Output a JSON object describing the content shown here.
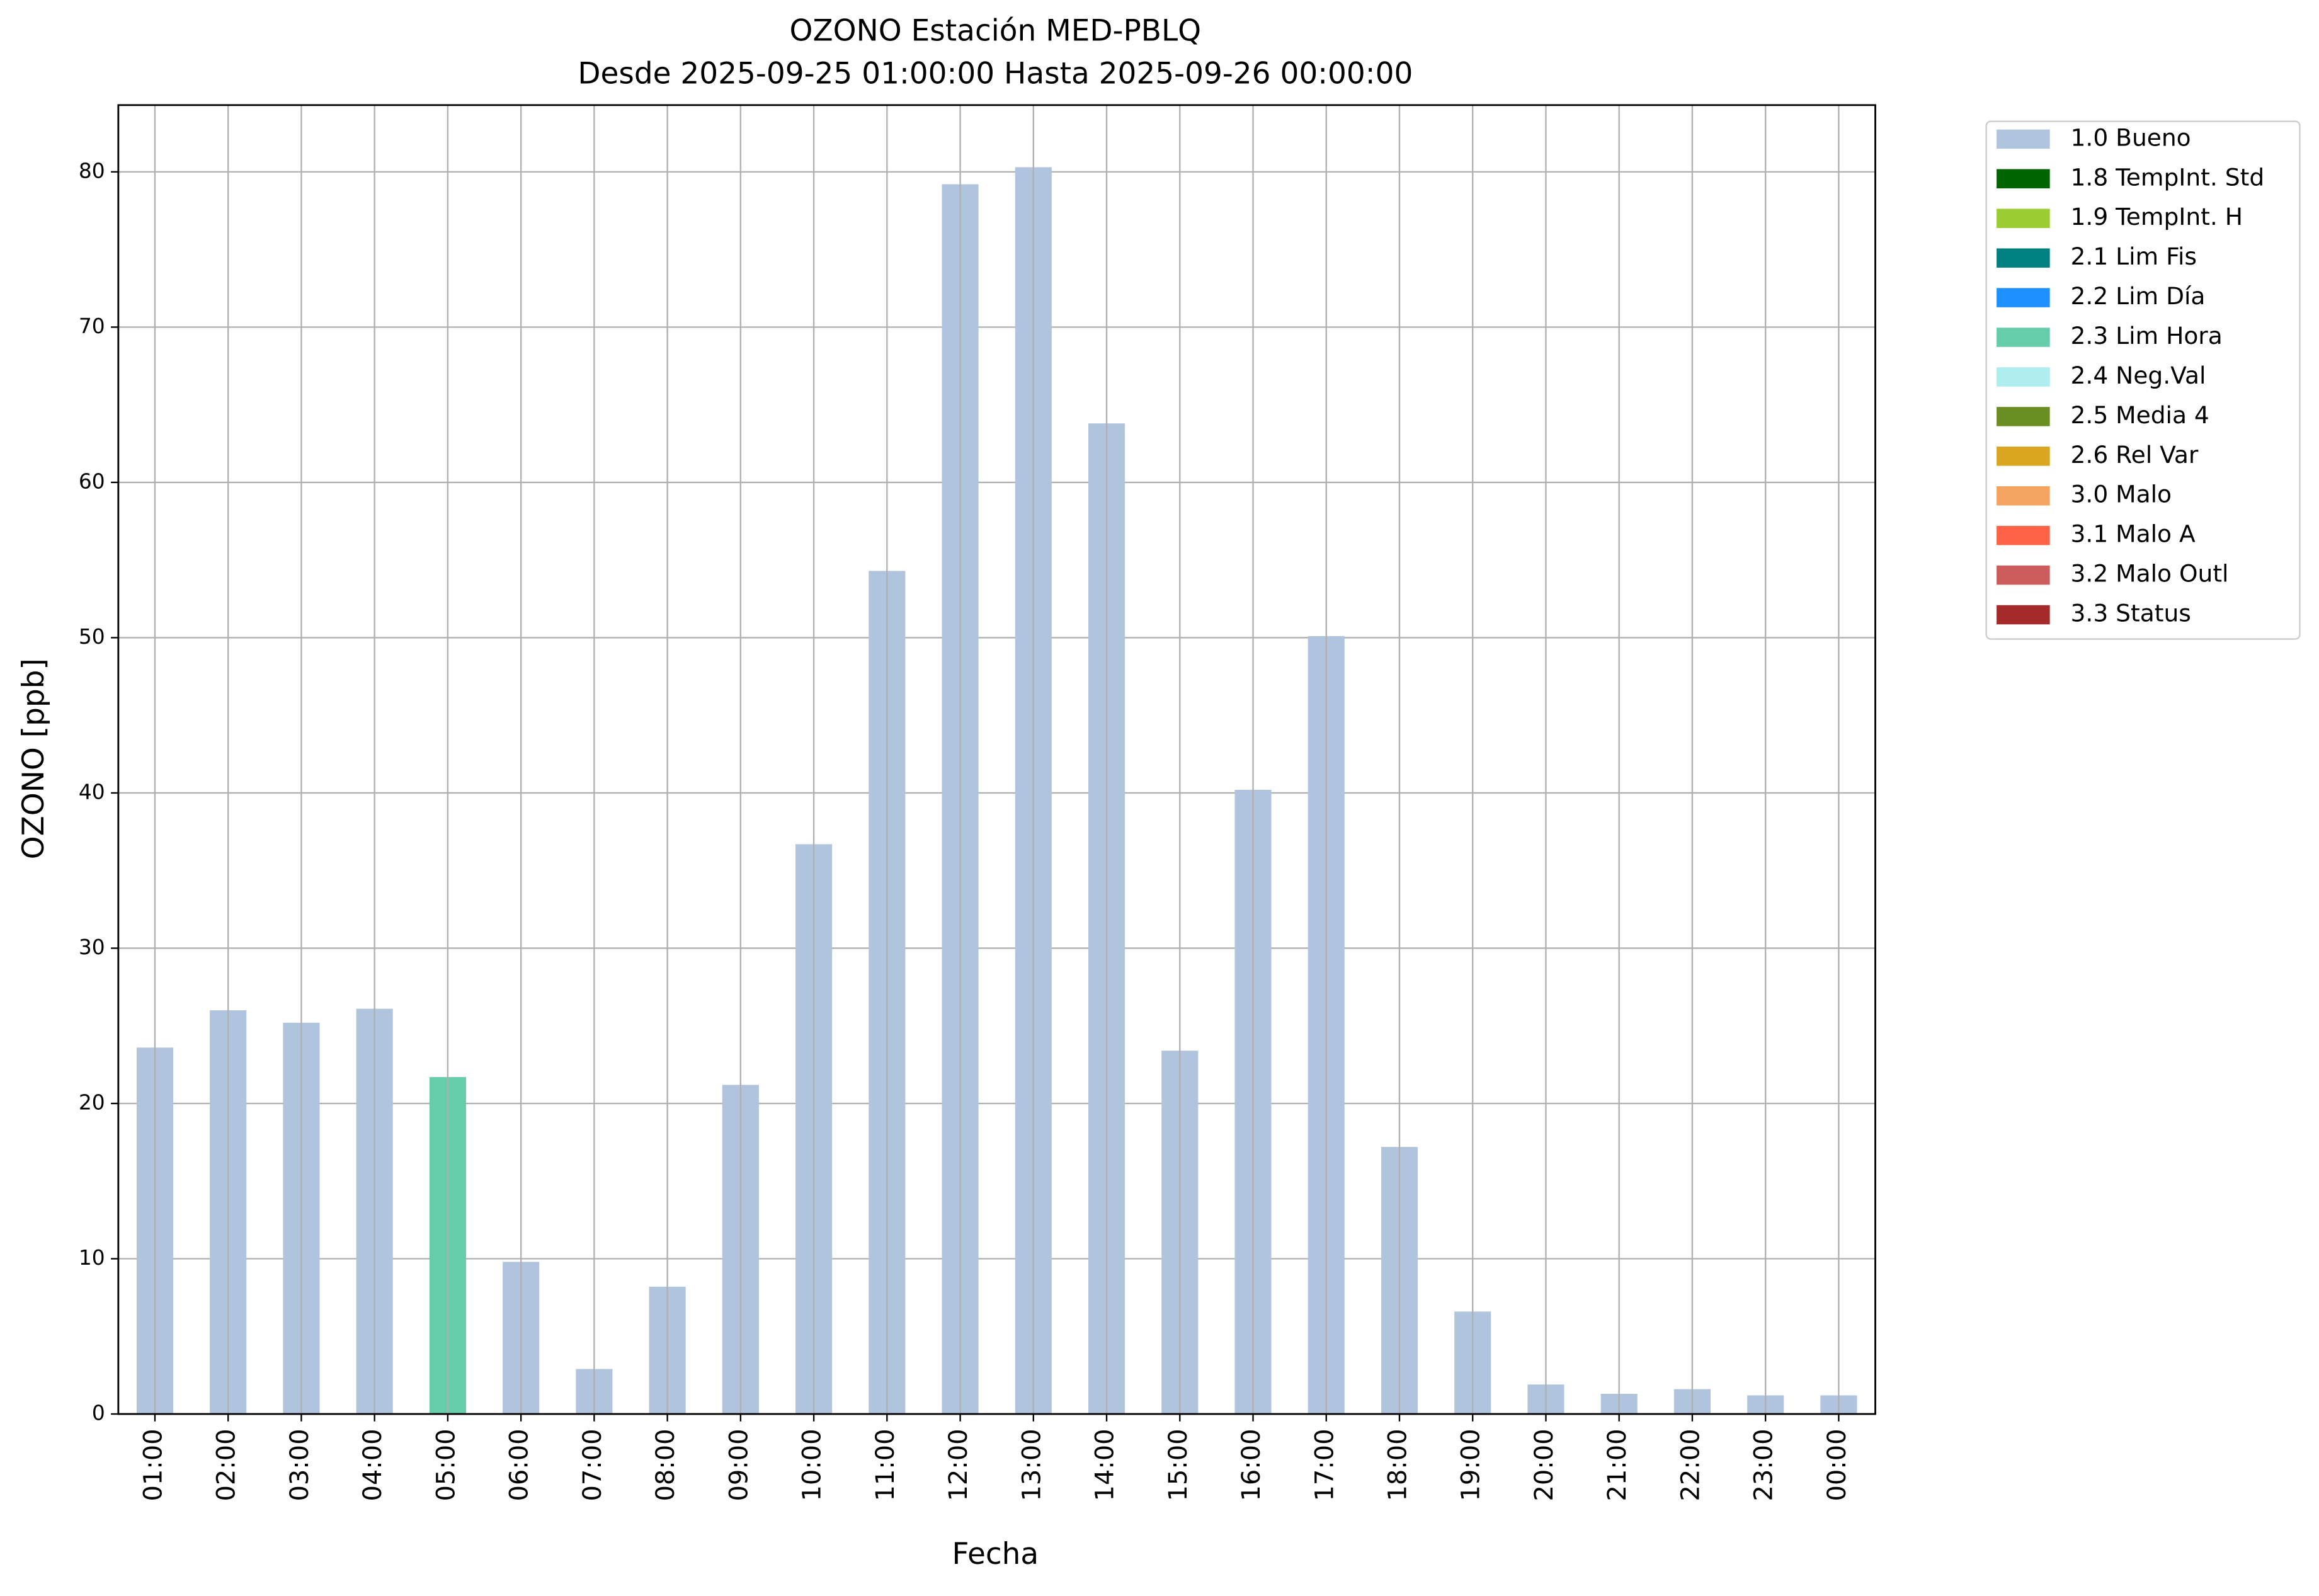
{
  "chart_data": {
    "type": "bar",
    "title": "OZONO Estación MED-PBLQ",
    "subtitle": "Desde 2025-09-25 01:00:00 Hasta 2025-09-26 00:00:00",
    "x_label": "Fecha",
    "y_label": "OZONO [ppb]",
    "categories": [
      "01:00",
      "02:00",
      "03:00",
      "04:00",
      "05:00",
      "06:00",
      "07:00",
      "08:00",
      "09:00",
      "10:00",
      "11:00",
      "12:00",
      "13:00",
      "14:00",
      "15:00",
      "16:00",
      "17:00",
      "18:00",
      "19:00",
      "20:00",
      "21:00",
      "22:00",
      "23:00",
      "00:00"
    ],
    "series": [
      {
        "name": "1.0 Bueno",
        "color": "#b0c4de",
        "values": [
          23.6,
          26.0,
          25.2,
          26.1,
          null,
          9.8,
          2.9,
          8.2,
          21.2,
          36.7,
          54.3,
          79.2,
          80.3,
          63.8,
          23.4,
          40.2,
          50.1,
          17.2,
          6.6,
          1.9,
          1.3,
          1.6,
          1.2,
          1.2
        ]
      },
      {
        "name": "1.8 TempInt. Std",
        "color": "#006400",
        "values": [
          null,
          null,
          null,
          null,
          null,
          null,
          null,
          null,
          null,
          null,
          null,
          null,
          null,
          null,
          null,
          null,
          null,
          null,
          null,
          null,
          null,
          null,
          null,
          null
        ]
      },
      {
        "name": "1.9 TempInt. H",
        "color": "#9acd32",
        "values": [
          null,
          null,
          null,
          null,
          null,
          null,
          null,
          null,
          null,
          null,
          null,
          null,
          null,
          null,
          null,
          null,
          null,
          null,
          null,
          null,
          null,
          null,
          null,
          null
        ]
      },
      {
        "name": "2.1 Lim Fis",
        "color": "#008080",
        "values": [
          null,
          null,
          null,
          null,
          null,
          null,
          null,
          null,
          null,
          null,
          null,
          null,
          null,
          null,
          null,
          null,
          null,
          null,
          null,
          null,
          null,
          null,
          null,
          null
        ]
      },
      {
        "name": "2.2 Lim Día",
        "color": "#1e90ff",
        "values": [
          null,
          null,
          null,
          null,
          null,
          null,
          null,
          null,
          null,
          null,
          null,
          null,
          null,
          null,
          null,
          null,
          null,
          null,
          null,
          null,
          null,
          null,
          null,
          null
        ]
      },
      {
        "name": "2.3 Lim Hora",
        "color": "#66cdaa",
        "values": [
          null,
          null,
          null,
          null,
          21.7,
          null,
          null,
          null,
          null,
          null,
          null,
          null,
          null,
          null,
          null,
          null,
          null,
          null,
          null,
          null,
          null,
          null,
          null,
          null
        ]
      },
      {
        "name": "2.4 Neg.Val",
        "color": "#afeeee",
        "values": [
          null,
          null,
          null,
          null,
          null,
          null,
          null,
          null,
          null,
          null,
          null,
          null,
          null,
          null,
          null,
          null,
          null,
          null,
          null,
          null,
          null,
          null,
          null,
          null
        ]
      },
      {
        "name": "2.5 Media 4",
        "color": "#6b8e23",
        "values": [
          null,
          null,
          null,
          null,
          null,
          null,
          null,
          null,
          null,
          null,
          null,
          null,
          null,
          null,
          null,
          null,
          null,
          null,
          null,
          null,
          null,
          null,
          null,
          null
        ]
      },
      {
        "name": "2.6 Rel Var",
        "color": "#daa520",
        "values": [
          null,
          null,
          null,
          null,
          null,
          null,
          null,
          null,
          null,
          null,
          null,
          null,
          null,
          null,
          null,
          null,
          null,
          null,
          null,
          null,
          null,
          null,
          null,
          null
        ]
      },
      {
        "name": "3.0 Malo",
        "color": "#f4a460",
        "values": [
          null,
          null,
          null,
          null,
          null,
          null,
          null,
          null,
          null,
          null,
          null,
          null,
          null,
          null,
          null,
          null,
          null,
          null,
          null,
          null,
          null,
          null,
          null,
          null
        ]
      },
      {
        "name": "3.1 Malo A",
        "color": "#ff6347",
        "values": [
          null,
          null,
          null,
          null,
          null,
          null,
          null,
          null,
          null,
          null,
          null,
          null,
          null,
          null,
          null,
          null,
          null,
          null,
          null,
          null,
          null,
          null,
          null,
          null
        ]
      },
      {
        "name": "3.2 Malo Outl",
        "color": "#cd5c5c",
        "values": [
          null,
          null,
          null,
          null,
          null,
          null,
          null,
          null,
          null,
          null,
          null,
          null,
          null,
          null,
          null,
          null,
          null,
          null,
          null,
          null,
          null,
          null,
          null,
          null
        ]
      },
      {
        "name": "3.3 Status",
        "color": "#a52a2a",
        "values": [
          null,
          null,
          null,
          null,
          null,
          null,
          null,
          null,
          null,
          null,
          null,
          null,
          null,
          null,
          null,
          null,
          null,
          null,
          null,
          null,
          null,
          null,
          null,
          null
        ]
      }
    ],
    "ylim": [
      0,
      84.3
    ],
    "yticks": [
      0,
      10,
      20,
      30,
      40,
      50,
      60,
      70,
      80
    ],
    "grid": true,
    "legend": "outside-upper-right"
  }
}
